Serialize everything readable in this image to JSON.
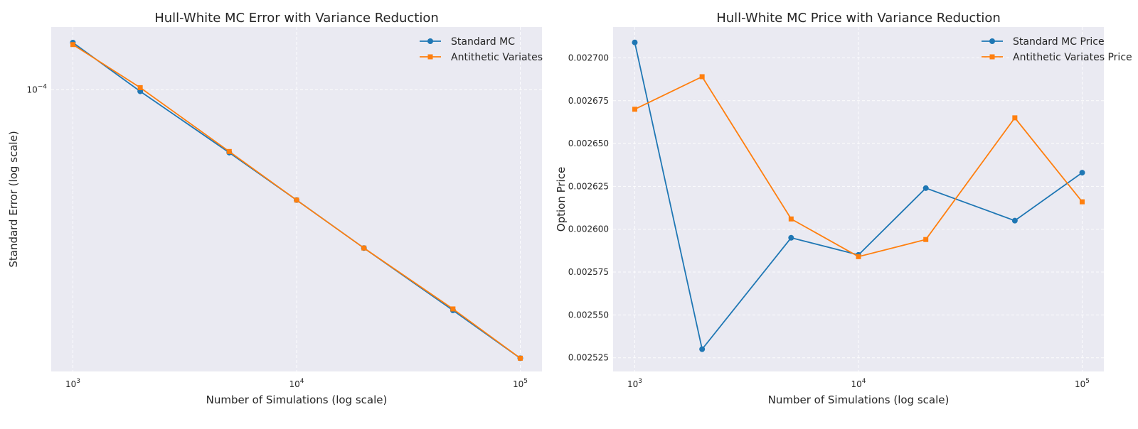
{
  "chart_data": [
    {
      "type": "line",
      "title": "Hull-White MC Error with Variance Reduction",
      "xlabel": "Number of Simulations (log scale)",
      "ylabel": "Standard Error (log scale)",
      "xscale": "log",
      "yscale": "log",
      "xlim": [
        800,
        125000
      ],
      "ylim": [
        1.28e-05,
        0.000158
      ],
      "x": [
        1000,
        2000,
        5000,
        10000,
        20000,
        50000,
        100000
      ],
      "x_ticks": [
        {
          "base": "10",
          "exp": "3"
        },
        {
          "base": "10",
          "exp": "4"
        },
        {
          "base": "10",
          "exp": "5"
        }
      ],
      "x_tick_values": [
        1000,
        10000,
        100000
      ],
      "y_ticks": [
        {
          "base": "10",
          "exp": "−4"
        }
      ],
      "y_tick_values": [
        0.0001
      ],
      "grid": true,
      "legend_position": "top-right",
      "series": [
        {
          "name": "Standard MC",
          "marker": "circle",
          "color": "#1f77b4",
          "values": [
            0.000141,
            9.88e-05,
            6.32e-05,
            4.47e-05,
            3.15e-05,
            2e-05,
            1.41e-05
          ]
        },
        {
          "name": "Antithetic Variates",
          "marker": "square",
          "color": "#ff7f0e",
          "values": [
            0.000139,
            0.0001015,
            6.37e-05,
            4.47e-05,
            3.15e-05,
            2.02e-05,
            1.41e-05
          ]
        }
      ]
    },
    {
      "type": "line",
      "title": "Hull-White MC Price with Variance Reduction",
      "xlabel": "Number of Simulations (log scale)",
      "ylabel": "Option Price",
      "xscale": "log",
      "yscale": "linear",
      "xlim": [
        800,
        125000
      ],
      "ylim": [
        0.002517,
        0.002718
      ],
      "x": [
        1000,
        2000,
        5000,
        10000,
        20000,
        50000,
        100000
      ],
      "x_ticks": [
        {
          "base": "10",
          "exp": "3"
        },
        {
          "base": "10",
          "exp": "4"
        },
        {
          "base": "10",
          "exp": "5"
        }
      ],
      "x_tick_values": [
        1000,
        10000,
        100000
      ],
      "y_ticks": [
        "0.002525",
        "0.002550",
        "0.002575",
        "0.002600",
        "0.002625",
        "0.002650",
        "0.002675",
        "0.002700"
      ],
      "y_tick_values": [
        0.002525,
        0.00255,
        0.002575,
        0.0026,
        0.002625,
        0.00265,
        0.002675,
        0.0027
      ],
      "grid": true,
      "legend_position": "top-right",
      "series": [
        {
          "name": "Standard MC Price",
          "marker": "circle",
          "color": "#1f77b4",
          "values": [
            0.002709,
            0.00253,
            0.002595,
            0.002585,
            0.002624,
            0.002605,
            0.002633
          ]
        },
        {
          "name": "Antithetic Variates Price",
          "marker": "square",
          "color": "#ff7f0e",
          "values": [
            0.00267,
            0.002689,
            0.002606,
            0.002584,
            0.002594,
            0.002665,
            0.002616
          ]
        }
      ]
    }
  ]
}
